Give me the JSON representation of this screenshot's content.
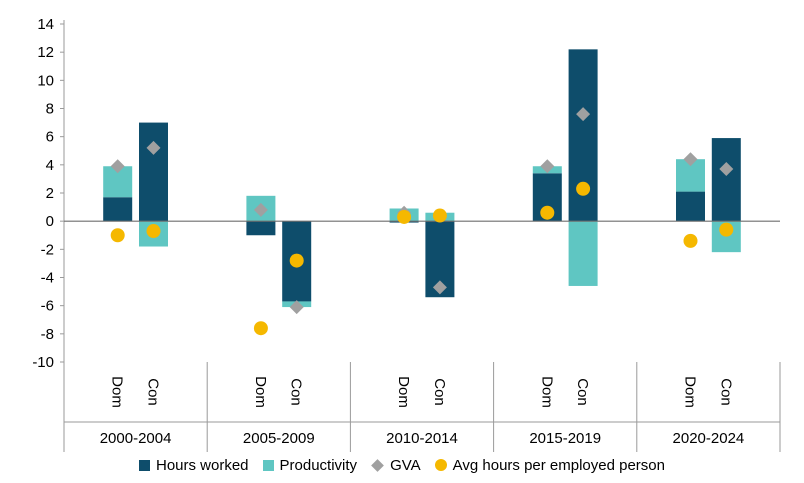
{
  "chart_data": {
    "type": "bar",
    "subtype": "stacked-bar-with-markers",
    "yaxis": {
      "min": -10,
      "max": 14,
      "ticks": [
        14,
        12,
        10,
        8,
        6,
        4,
        2,
        0,
        -2,
        -4,
        -6,
        -8,
        -10
      ]
    },
    "groups": [
      {
        "label": "2000-2004",
        "categories": [
          "Dom",
          "Con"
        ]
      },
      {
        "label": "2005-2009",
        "categories": [
          "Dom",
          "Con"
        ]
      },
      {
        "label": "2010-2014",
        "categories": [
          "Dom",
          "Con"
        ]
      },
      {
        "label": "2015-2019",
        "categories": [
          "Dom",
          "Con"
        ]
      },
      {
        "label": "2020-2024",
        "categories": [
          "Dom",
          "Con"
        ]
      }
    ],
    "series": [
      {
        "name": "Hours worked",
        "kind": "bar",
        "color": "#0e4d6b",
        "values": [
          1.7,
          7.0,
          -1.0,
          -5.7,
          -0.1,
          -5.4,
          3.4,
          12.2,
          2.1,
          5.9
        ]
      },
      {
        "name": "Productivity",
        "kind": "bar",
        "color": "#5fc6c2",
        "values": [
          2.2,
          -1.8,
          1.8,
          -0.4,
          0.9,
          0.6,
          0.5,
          -4.6,
          2.3,
          -2.2
        ]
      },
      {
        "name": "GVA",
        "kind": "diamond",
        "color": "#a0a0a0",
        "values": [
          3.9,
          5.2,
          0.8,
          -6.1,
          0.6,
          -4.7,
          3.9,
          7.6,
          4.4,
          3.7
        ]
      },
      {
        "name": "Avg hours per employed person",
        "kind": "circle",
        "color": "#f5b800",
        "values": [
          -1.0,
          -0.7,
          -7.6,
          -2.8,
          0.3,
          0.4,
          0.6,
          2.3,
          -1.4,
          -0.6
        ]
      }
    ]
  }
}
